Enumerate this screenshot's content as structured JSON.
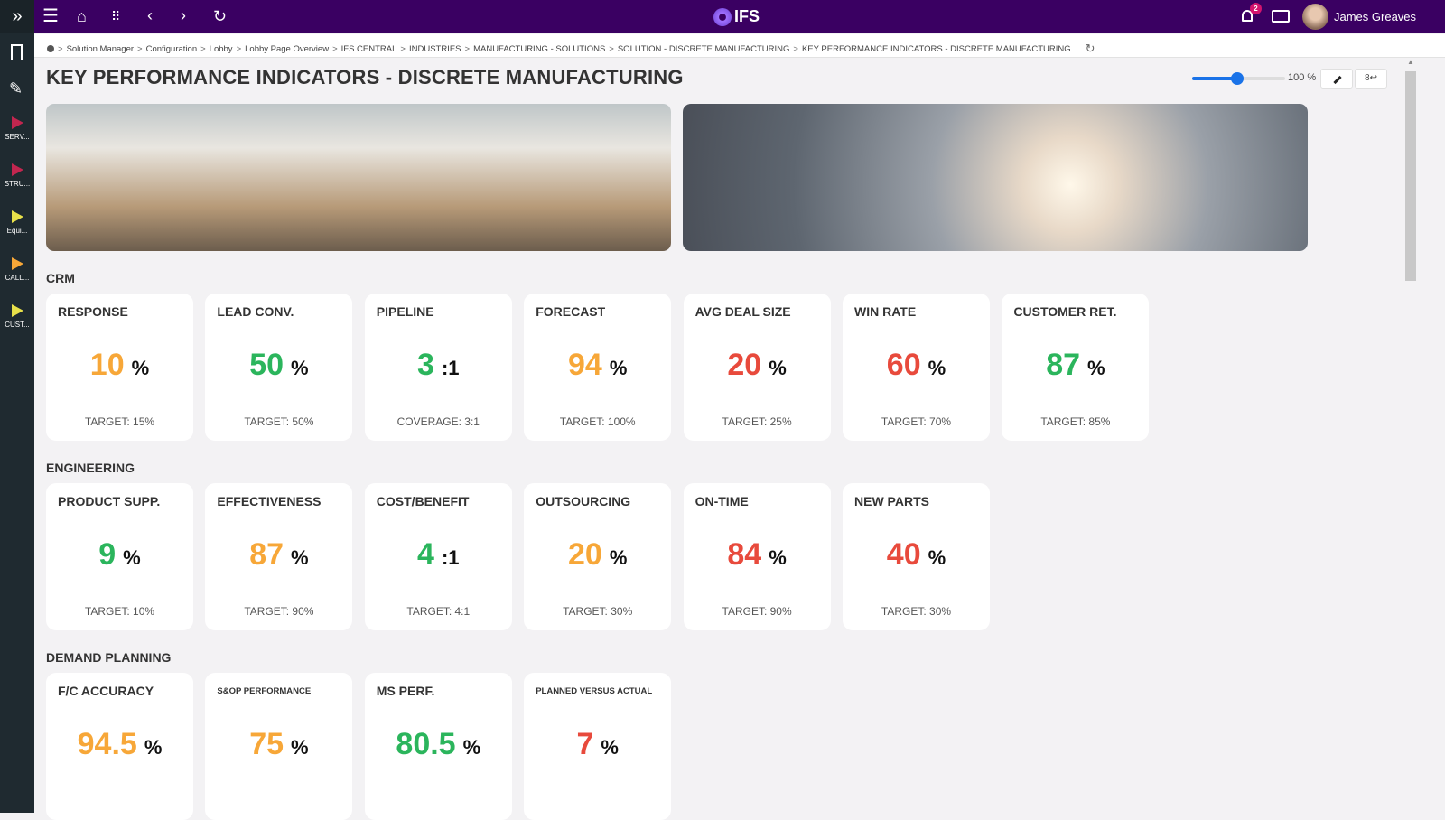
{
  "app": {
    "logo": "IFS",
    "user": "James Greaves",
    "notifications": "2"
  },
  "breadcrumb": [
    "Solution Manager",
    "Configuration",
    "Lobby",
    "Lobby Page Overview",
    "IFS CENTRAL",
    "INDUSTRIES",
    "MANUFACTURING - SOLUTIONS",
    "SOLUTION - DISCRETE MANUFACTURING",
    "KEY PERFORMANCE INDICATORS - DISCRETE MANUFACTURING"
  ],
  "page": {
    "title": "KEY PERFORMANCE INDICATORS - DISCRETE MANUFACTURING",
    "zoom": "100 %",
    "zoom_value": 100
  },
  "sidebar": [
    {
      "label": "SERV...",
      "color": "#c2264f"
    },
    {
      "label": "STRU...",
      "color": "#c2264f"
    },
    {
      "label": "Equi...",
      "color": "#e8e04a"
    },
    {
      "label": "CALL...",
      "color": "#f7a738"
    },
    {
      "label": "CUST...",
      "color": "#e8e04a"
    }
  ],
  "colors": {
    "orange": "#f7a738",
    "green": "#2bb55c",
    "red": "#e84a3c",
    "topbar": "#3a0062"
  },
  "sections": [
    {
      "title": "CRM",
      "cards": [
        {
          "title": "RESPONSE",
          "value": "10",
          "unit": "%",
          "sub": "TARGET: 15%",
          "color": "orange"
        },
        {
          "title": "LEAD CONV.",
          "value": "50",
          "unit": "%",
          "sub": "TARGET: 50%",
          "color": "green"
        },
        {
          "title": "PIPELINE",
          "value": "3",
          "unit": ":1",
          "sub": "COVERAGE: 3:1",
          "color": "green"
        },
        {
          "title": "FORECAST",
          "value": "94",
          "unit": "%",
          "sub": "TARGET: 100%",
          "color": "orange"
        },
        {
          "title": "AVG DEAL SIZE",
          "value": "20",
          "unit": "%",
          "sub": "TARGET: 25%",
          "color": "red"
        },
        {
          "title": "WIN RATE",
          "value": "60",
          "unit": "%",
          "sub": "TARGET: 70%",
          "color": "red"
        },
        {
          "title": "CUSTOMER RET.",
          "value": "87",
          "unit": "%",
          "sub": "TARGET: 85%",
          "color": "green"
        }
      ]
    },
    {
      "title": "ENGINEERING",
      "cards": [
        {
          "title": "PRODUCT SUPP.",
          "value": "9",
          "unit": "%",
          "sub": "TARGET: 10%",
          "color": "green"
        },
        {
          "title": "EFFECTIVENESS",
          "value": "87",
          "unit": "%",
          "sub": "TARGET: 90%",
          "color": "orange"
        },
        {
          "title": "COST/BENEFIT",
          "value": "4",
          "unit": ":1",
          "sub": "TARGET: 4:1",
          "color": "green"
        },
        {
          "title": "OUTSOURCING",
          "value": "20",
          "unit": "%",
          "sub": "TARGET: 30%",
          "color": "orange"
        },
        {
          "title": "ON-TIME",
          "value": "84",
          "unit": "%",
          "sub": "TARGET: 90%",
          "color": "red"
        },
        {
          "title": "NEW PARTS",
          "value": "40",
          "unit": "%",
          "sub": "TARGET: 30%",
          "color": "red"
        }
      ]
    },
    {
      "title": "DEMAND PLANNING",
      "cards": [
        {
          "title": "F/C ACCURACY",
          "value": "94.5",
          "unit": "%",
          "color": "orange"
        },
        {
          "title": "S&OP PERFORMANCE",
          "value": "75",
          "unit": "%",
          "color": "orange",
          "small": true
        },
        {
          "title": "MS PERF.",
          "value": "80.5",
          "unit": "%",
          "color": "green"
        },
        {
          "title": "PLANNED VERSUS ACTUAL",
          "value": "7",
          "unit": "%",
          "color": "red",
          "small": true
        }
      ]
    }
  ]
}
